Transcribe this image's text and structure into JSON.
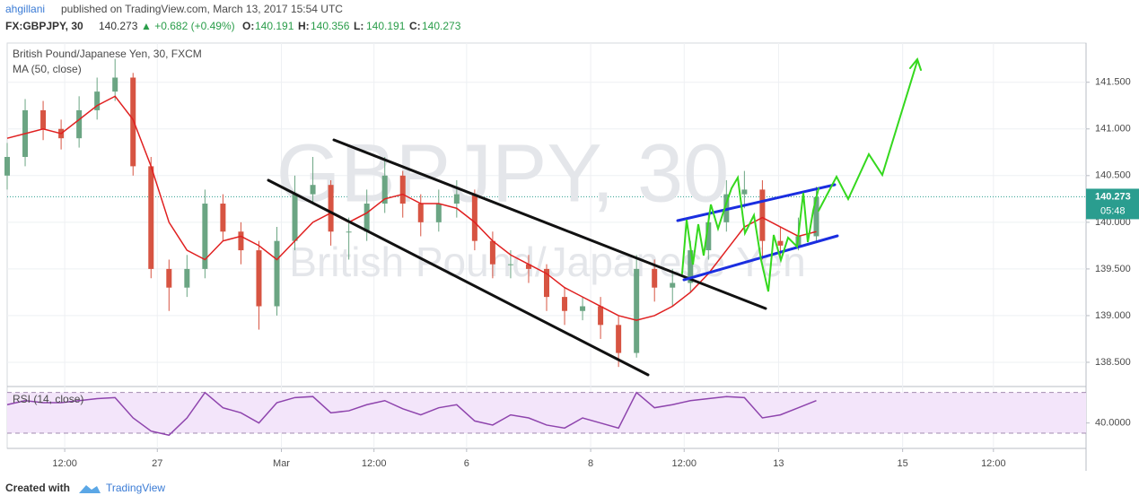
{
  "header": {
    "author": "ahgillani",
    "published": "published on TradingView.com, March 13, 2017 15:54 UTC",
    "symbol": "FX:GBPJPY, 30",
    "last": "140.273",
    "change": "▲ +0.682 (+0.49%)",
    "ohlc": [
      {
        "label": "O:",
        "value": "140.191"
      },
      {
        "label": "H:",
        "value": "140.356"
      },
      {
        "label": "L:",
        "value": "140.191"
      },
      {
        "label": "C:",
        "value": "140.273"
      }
    ]
  },
  "chart_data": {
    "type": "candlestick",
    "title": "British Pound/Japanese Yen, 30, FXCM",
    "watermark": [
      "GBPJPY, 30",
      "British Pound/Japanese Yen"
    ],
    "up_color": "#6ba583",
    "down_color": "#d75442",
    "x": [
      0,
      2,
      4,
      6,
      8,
      10,
      12,
      14,
      16,
      18,
      20,
      22,
      24,
      26,
      28,
      30,
      32,
      34,
      36,
      38,
      40,
      42,
      44,
      46,
      48,
      50,
      52,
      54,
      56,
      58,
      60,
      62,
      64,
      66,
      68,
      70,
      72,
      74,
      76,
      78,
      80,
      82,
      84,
      86,
      88,
      90
    ],
    "open": [
      140.5,
      140.7,
      141.2,
      141.0,
      140.9,
      141.2,
      141.4,
      141.55,
      140.6,
      139.5,
      139.3,
      139.5,
      140.2,
      139.9,
      139.7,
      139.1,
      139.8,
      140.3,
      140.4,
      139.9,
      139.9,
      140.2,
      140.5,
      140.2,
      140.0,
      140.2,
      140.3,
      139.8,
      139.55,
      139.55,
      139.5,
      139.2,
      139.05,
      139.1,
      138.9,
      138.6,
      139.5,
      139.3,
      139.35,
      139.7,
      140.0,
      140.3,
      140.35,
      139.8,
      139.75,
      139.85
    ],
    "high": [
      140.85,
      141.32,
      141.3,
      141.1,
      141.35,
      141.55,
      141.75,
      141.6,
      140.7,
      139.6,
      139.65,
      140.35,
      140.3,
      140.0,
      139.8,
      139.95,
      140.5,
      140.7,
      140.45,
      140.05,
      140.35,
      140.7,
      140.55,
      140.3,
      140.35,
      140.45,
      140.35,
      139.9,
      139.7,
      139.65,
      139.55,
      139.3,
      139.2,
      139.2,
      139.0,
      139.65,
      139.6,
      139.5,
      139.8,
      140.1,
      140.45,
      140.55,
      140.45,
      139.95,
      140.05,
      140.38
    ],
    "low": [
      140.35,
      140.6,
      140.88,
      140.78,
      140.8,
      141.1,
      141.3,
      140.5,
      139.4,
      139.05,
      139.2,
      139.4,
      139.8,
      139.55,
      138.85,
      139.0,
      139.7,
      140.2,
      139.75,
      139.6,
      139.8,
      140.1,
      140.05,
      139.85,
      139.9,
      140.05,
      139.7,
      139.4,
      139.4,
      139.35,
      139.05,
      138.9,
      138.95,
      138.75,
      138.45,
      138.55,
      139.15,
      139.1,
      139.25,
      139.6,
      139.9,
      140.15,
      139.6,
      139.6,
      139.7,
      139.8
    ],
    "close": [
      140.7,
      141.2,
      141.0,
      140.9,
      141.2,
      141.4,
      141.55,
      140.6,
      139.5,
      139.3,
      139.5,
      140.2,
      139.9,
      139.7,
      139.1,
      139.8,
      140.3,
      140.4,
      139.9,
      139.9,
      140.2,
      140.5,
      140.2,
      140.0,
      140.2,
      140.3,
      139.8,
      139.55,
      139.55,
      139.5,
      139.2,
      139.05,
      139.1,
      138.9,
      138.6,
      139.5,
      139.3,
      139.35,
      139.7,
      140.0,
      140.3,
      140.35,
      139.8,
      139.75,
      139.85,
      140.27
    ],
    "series": [
      {
        "name": "MA (50, close)",
        "color": "#e02020",
        "values": [
          140.9,
          140.95,
          141.0,
          140.95,
          141.1,
          141.25,
          141.35,
          141.1,
          140.6,
          140.0,
          139.7,
          139.6,
          139.8,
          139.85,
          139.75,
          139.6,
          139.8,
          140.0,
          140.1,
          140.0,
          140.1,
          140.25,
          140.3,
          140.2,
          140.2,
          140.15,
          140.0,
          139.8,
          139.65,
          139.55,
          139.45,
          139.3,
          139.2,
          139.1,
          139.0,
          138.95,
          139.0,
          139.1,
          139.25,
          139.45,
          139.7,
          139.95,
          140.05,
          139.95,
          139.85,
          139.9
        ]
      }
    ],
    "xlim": [
      0,
      120
    ],
    "xticks": [
      {
        "value": 6.4,
        "label": "12:00"
      },
      {
        "value": 16.7,
        "label": "27"
      },
      {
        "value": 30.5,
        "label": "Mar"
      },
      {
        "value": 40.8,
        "label": "12:00"
      },
      {
        "value": 51.1,
        "label": "6"
      },
      {
        "value": 64.9,
        "label": "8"
      },
      {
        "value": 75.3,
        "label": "12:00"
      },
      {
        "value": 85.8,
        "label": "13"
      },
      {
        "value": 99.6,
        "label": "15"
      },
      {
        "value": 109.7,
        "label": "12:00"
      }
    ],
    "ylim": [
      138.25,
      141.92
    ],
    "yticks": [
      {
        "value": 138.5,
        "label": "138.500"
      },
      {
        "value": 139,
        "label": "139.000"
      },
      {
        "value": 139.5,
        "label": "139.500"
      },
      {
        "value": 140,
        "label": "140.000"
      },
      {
        "value": 140.5,
        "label": "140.500"
      },
      {
        "value": 141,
        "label": "141.000"
      },
      {
        "value": 141.5,
        "label": "141.500"
      }
    ],
    "grid": true,
    "last_price": 140.273,
    "countdown": "05:48",
    "rsi": {
      "type": "line",
      "name": "RSI (14, close)",
      "color": "#8e44ad",
      "bands": [
        30,
        70
      ],
      "values": [
        58,
        62,
        60,
        60,
        62,
        64,
        65,
        45,
        32,
        28,
        45,
        70,
        55,
        50,
        40,
        60,
        65,
        66,
        50,
        52,
        58,
        62,
        54,
        48,
        55,
        58,
        42,
        38,
        48,
        45,
        38,
        35,
        45,
        40,
        35,
        70,
        55,
        58,
        62,
        64,
        66,
        65,
        45,
        48,
        55,
        62
      ],
      "ylim": [
        15,
        75
      ],
      "yticks": [
        {
          "value": 40,
          "label": "40.0000"
        }
      ]
    }
  },
  "footer": {
    "created": "Created with",
    "brand": "TradingView"
  }
}
